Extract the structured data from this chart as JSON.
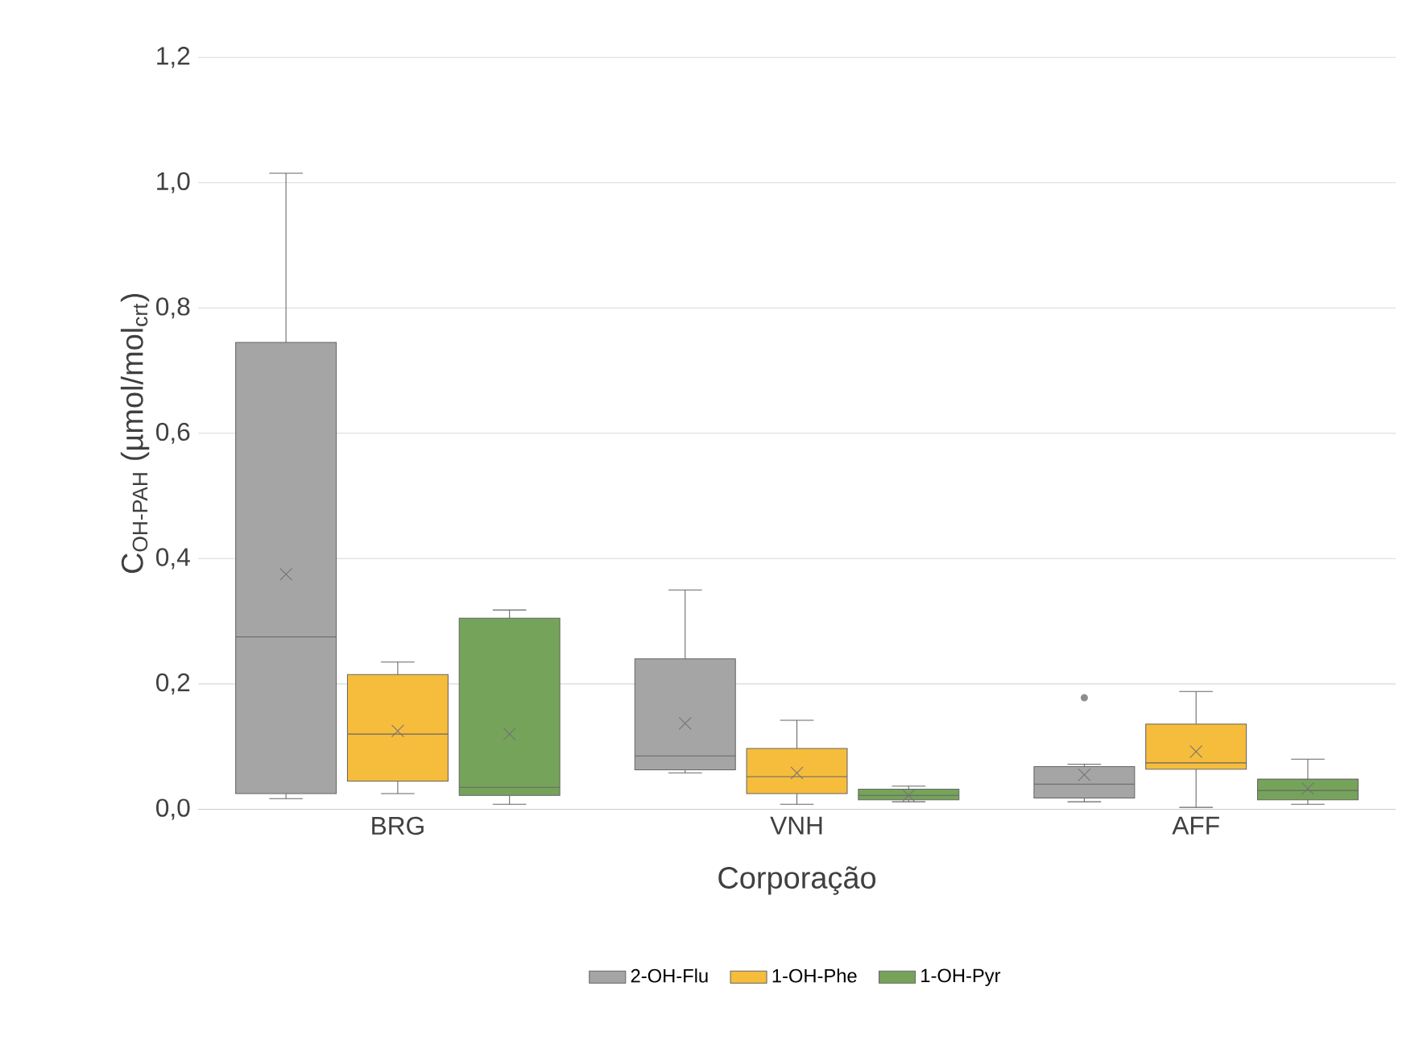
{
  "chart_data": {
    "type": "box",
    "xlabel": "Corporação",
    "ylabel": "C$_{OH-PAH}$ (µmol/mol$_{crt}$)",
    "categories": [
      "BRG",
      "VNH",
      "AFF"
    ],
    "ylim": [
      0,
      1.2
    ],
    "yticks": [
      {
        "value": 0,
        "label": "0,0"
      },
      {
        "value": 0.2,
        "label": "0,2"
      },
      {
        "value": 0.4,
        "label": "0,4"
      },
      {
        "value": 0.6,
        "label": "0,6"
      },
      {
        "value": 0.8,
        "label": "0,8"
      },
      {
        "value": 1.0,
        "label": "1,0"
      },
      {
        "value": 1.2,
        "label": "1,2"
      }
    ],
    "grid": "y",
    "legend": "bottom",
    "series": [
      {
        "name": "2-OH-Flu",
        "color": "#a5a5a5",
        "boxes": [
          {
            "low": 0.017,
            "q1": 0.025,
            "median": 0.275,
            "q3": 0.745,
            "high": 1.015,
            "mean": 0.375
          },
          {
            "low": 0.058,
            "q1": 0.063,
            "median": 0.085,
            "q3": 0.24,
            "high": 0.35,
            "mean": 0.137
          },
          {
            "low": 0.012,
            "q1": 0.018,
            "median": 0.04,
            "q3": 0.068,
            "high": 0.072,
            "mean": 0.055,
            "outliers": [
              0.178
            ]
          }
        ]
      },
      {
        "name": "1-OH-Phe",
        "color": "#f6bd3c",
        "boxes": [
          {
            "low": 0.025,
            "q1": 0.045,
            "median": 0.12,
            "q3": 0.215,
            "high": 0.235,
            "mean": 0.125
          },
          {
            "low": 0.008,
            "q1": 0.025,
            "median": 0.052,
            "q3": 0.097,
            "high": 0.142,
            "mean": 0.058
          },
          {
            "low": 0.003,
            "q1": 0.064,
            "median": 0.074,
            "q3": 0.136,
            "high": 0.188,
            "mean": 0.092
          }
        ]
      },
      {
        "name": "1-OH-Pyr",
        "color": "#76a35a",
        "boxes": [
          {
            "low": 0.008,
            "q1": 0.022,
            "median": 0.035,
            "q3": 0.305,
            "high": 0.318,
            "mean": 0.12
          },
          {
            "low": 0.012,
            "q1": 0.015,
            "median": 0.022,
            "q3": 0.032,
            "high": 0.037,
            "mean": 0.022
          },
          {
            "low": 0.008,
            "q1": 0.015,
            "median": 0.03,
            "q3": 0.048,
            "high": 0.08,
            "mean": 0.033
          }
        ]
      }
    ]
  }
}
